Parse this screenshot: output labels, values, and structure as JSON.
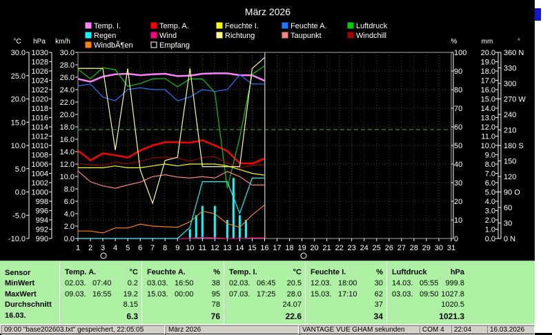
{
  "chart": {
    "title": "März 2026",
    "left_axis_units": [
      "°C",
      "hPa",
      "km/h"
    ],
    "right_axis_units": [
      "%",
      "mm",
      "°"
    ],
    "axis_celsius": [
      "30.0",
      "25.0",
      "20.0",
      "15.0",
      "10.0",
      "5.0",
      "0.0",
      "-5.0",
      "-10.0"
    ],
    "axis_hpa": [
      "1030",
      "1028",
      "1026",
      "1024",
      "1022",
      "1020",
      "1018",
      "1016",
      "1014",
      "1012",
      "1010",
      "1008",
      "1006",
      "1004",
      "1002",
      "1000",
      "998",
      "996",
      "994",
      "992",
      "990"
    ],
    "axis_kmh": [
      "30.0",
      "28.0",
      "26.0",
      "24.0",
      "22.0",
      "20.0",
      "18.0",
      "16.0",
      "14.0",
      "12.0",
      "10.0",
      "8.0",
      "6.0",
      "4.0",
      "2.0",
      "0.0"
    ],
    "axis_percent": [
      "100",
      "90",
      "80",
      "70",
      "60",
      "50",
      "40",
      "30",
      "20",
      "10",
      "0"
    ],
    "axis_mm": [
      "20.0",
      "19.0",
      "18.0",
      "17.0",
      "16.0",
      "15.0",
      "14.0",
      "13.0",
      "12.0",
      "11.0",
      "10.0",
      "9.0",
      "8.0",
      "7.0",
      "6.0",
      "5.0",
      "4.0",
      "3.0",
      "2.0",
      "1.0",
      "0.0"
    ],
    "axis_degrees": [
      "360 N",
      "330",
      "300",
      "270 W",
      "240",
      "210",
      "180 S",
      "150",
      "120",
      "90  O",
      "60",
      "30",
      "0   N"
    ],
    "days": [
      "1",
      "2",
      "3",
      "4",
      "5",
      "6",
      "7",
      "8",
      "9",
      "10",
      "11",
      "12",
      "13",
      "14",
      "15",
      "16",
      "17",
      "18",
      "19",
      "20",
      "21",
      "22",
      "23",
      "24",
      "25",
      "26",
      "27",
      "28",
      "29",
      "30",
      "31"
    ],
    "legend": [
      {
        "label": "Temp. I.",
        "color": "#ff80ff"
      },
      {
        "label": "Temp. A.",
        "color": "#ff0000"
      },
      {
        "label": "Feuchte I.",
        "color": "#ffff00"
      },
      {
        "label": "Feuchte A.",
        "color": "#1e78ff"
      },
      {
        "label": "Luftdruck",
        "color": "#00d000"
      },
      {
        "label": "Regen",
        "color": "#00ffff"
      },
      {
        "label": "Wind",
        "color": "#ff0080"
      },
      {
        "label": "Richtung",
        "color": "#ffff90"
      },
      {
        "label": "Taupunkt",
        "color": "#ff8080"
      },
      {
        "label": "Windchill",
        "color": "#a00000"
      },
      {
        "label": "WindbÃ¶en",
        "color": "#ff8000"
      },
      {
        "label": "Empfang",
        "color": "#000000"
      }
    ],
    "reference_level_percent": 58.5,
    "current_day_marker": 16,
    "chart_data": {
      "type": "line",
      "title": "März 2026",
      "x_label": "Tag",
      "x": [
        1,
        2,
        3,
        4,
        5,
        6,
        7,
        8,
        9,
        10,
        11,
        12,
        13,
        14,
        15,
        16
      ],
      "series": [
        {
          "name": "Temp. I.",
          "axis": "celsius",
          "values": [
            24.3,
            23.7,
            24.8,
            25.3,
            25.4,
            25.1,
            25.3,
            25.4,
            24.9,
            25.0,
            25.4,
            25.5,
            25.5,
            25.1,
            25.1,
            23.9
          ]
        },
        {
          "name": "Temp. A.",
          "axis": "celsius",
          "values": [
            8.9,
            6.8,
            8.3,
            7.9,
            7.4,
            8.9,
            10.0,
            10.7,
            10.7,
            10.6,
            11.1,
            10.0,
            8.8,
            6.2,
            6.1,
            7.2
          ]
        },
        {
          "name": "Luftdruck",
          "axis": "hPa",
          "values": [
            1026.4,
            1024.3,
            1026.7,
            1026.3,
            1022.7,
            1023.3,
            1024.3,
            1024.4,
            1022.6,
            1024.3,
            1024.3,
            1021.4,
            1000.8,
            1011.7,
            1025.3,
            1027.1
          ]
        },
        {
          "name": "Feuchte A.",
          "axis": "percent",
          "values": [
            82,
            83,
            76,
            74,
            80,
            81,
            80,
            80,
            74,
            76,
            80,
            79,
            80,
            88,
            83,
            83
          ]
        },
        {
          "name": "Feuchte I.",
          "axis": "percent",
          "values": [
            38,
            38,
            38,
            39,
            38,
            38,
            39,
            40,
            39,
            40,
            40,
            40,
            39,
            37,
            35,
            34
          ]
        },
        {
          "name": "Taupunkt",
          "axis": "celsius",
          "values": [
            4.5,
            2.2,
            1.3,
            0.8,
            1.5,
            2.1,
            3.3,
            3.7,
            3.2,
            3.0,
            3.3,
            3.0,
            4.4,
            3.3,
            1.5,
            1.5
          ]
        },
        {
          "name": "Windchill",
          "axis": "celsius",
          "values": [
            6.1,
            5.8,
            5.7,
            6.4,
            6.1,
            6.6,
            7.3,
            7.5,
            7.3,
            6.6,
            7.4,
            7.6,
            6.2,
            5.2,
            5.7,
            5.8
          ]
        },
        {
          "name": "Richtung",
          "axis": "degrees",
          "values": [
            329,
            329,
            329,
            171,
            329,
            133,
            68,
            151,
            157,
            329,
            139,
            139,
            139,
            139,
            329,
            350
          ]
        },
        {
          "name": "WindbÃ¶en",
          "axis": "kmh",
          "values": [
            1.2,
            1.2,
            0.9,
            1.7,
            1.7,
            2.3,
            2.0,
            1.9,
            1.8,
            2.7,
            4.4,
            4.0,
            2.4,
            1.8,
            3.8,
            5.4
          ]
        },
        {
          "name": "Wind",
          "axis": "kmh",
          "values": [
            0,
            0,
            0,
            0,
            0,
            0,
            0,
            0,
            0,
            0,
            0.2,
            0.1,
            0,
            0,
            0.1,
            0.1
          ]
        },
        {
          "name": "Regen",
          "axis": "mm",
          "values": [
            0,
            0,
            0,
            0,
            0,
            0,
            0,
            0,
            0,
            1.2,
            6.1,
            6.1,
            6.1,
            2.7,
            6.5,
            6.5
          ]
        }
      ],
      "rain_bars_mm": [
        {
          "day": 10,
          "value": 1.0
        },
        {
          "day": 10.5,
          "value": 2.5
        },
        {
          "day": 11,
          "value": 3.5
        },
        {
          "day": 12,
          "value": 3.5
        },
        {
          "day": 13,
          "value": 2.0
        },
        {
          "day": 13.5,
          "value": 6.5
        },
        {
          "day": 14,
          "value": 2.5
        },
        {
          "day": 14.5,
          "value": 2.0
        }
      ],
      "y_ranges": {
        "celsius": [
          -10,
          30
        ],
        "hPa": [
          990,
          1030
        ],
        "kmh": [
          0,
          30
        ],
        "percent": [
          0,
          100
        ],
        "mm": [
          0,
          20
        ],
        "degrees": [
          0,
          360
        ]
      }
    }
  },
  "stats": {
    "labels": {
      "sensor": "Sensor",
      "min": "MinWert",
      "max": "MaxWert",
      "avg": "Durchschnitt",
      "current": "16.03."
    },
    "blocks": [
      {
        "title": "Temp. A.",
        "unit": "°C",
        "min_date": "02.03.",
        "min_time": "07:40",
        "min_value": "0.2",
        "max_date": "09.03.",
        "max_time": "16:55",
        "max_value": "19.2",
        "avg": "8.15",
        "current": "6.3"
      },
      {
        "title": "Feuchte A.",
        "unit": "%",
        "min_date": "03.03.",
        "min_time": "16:50",
        "min_value": "38",
        "max_date": "15.03.",
        "max_time": "00:00",
        "max_value": "95",
        "avg": "78",
        "current": "76"
      },
      {
        "title": "Temp. I.",
        "unit": "°C",
        "min_date": "02.03.",
        "min_time": "06:45",
        "min_value": "20.5",
        "max_date": "07.03.",
        "max_time": "17:25",
        "max_value": "28.0",
        "avg": "24.07",
        "current": "22.6"
      },
      {
        "title": "Feuchte I.",
        "unit": "%",
        "min_date": "12.03.",
        "min_time": "18:00",
        "min_value": "30",
        "max_date": "15.03.",
        "max_time": "17:10",
        "max_value": "62",
        "avg": "37",
        "current": "34"
      },
      {
        "title": "Luftdruck",
        "unit": "hPa",
        "min_date": "14.03.",
        "min_time": "05:55",
        "min_value": "999.8",
        "max_date": "03.03.",
        "max_time": "09:50",
        "max_value": "1027.8",
        "avg": "1020.5",
        "current": "1021.3"
      }
    ]
  },
  "statusbar": {
    "file": "09:00 \"base202603.txt\" gespeichert, 22:05:05",
    "month": "März 2026",
    "connection": "VANTAGE VUE GHAM sekunden",
    "port": "COM 4",
    "time": "22:04",
    "date": "16.03.2026"
  }
}
